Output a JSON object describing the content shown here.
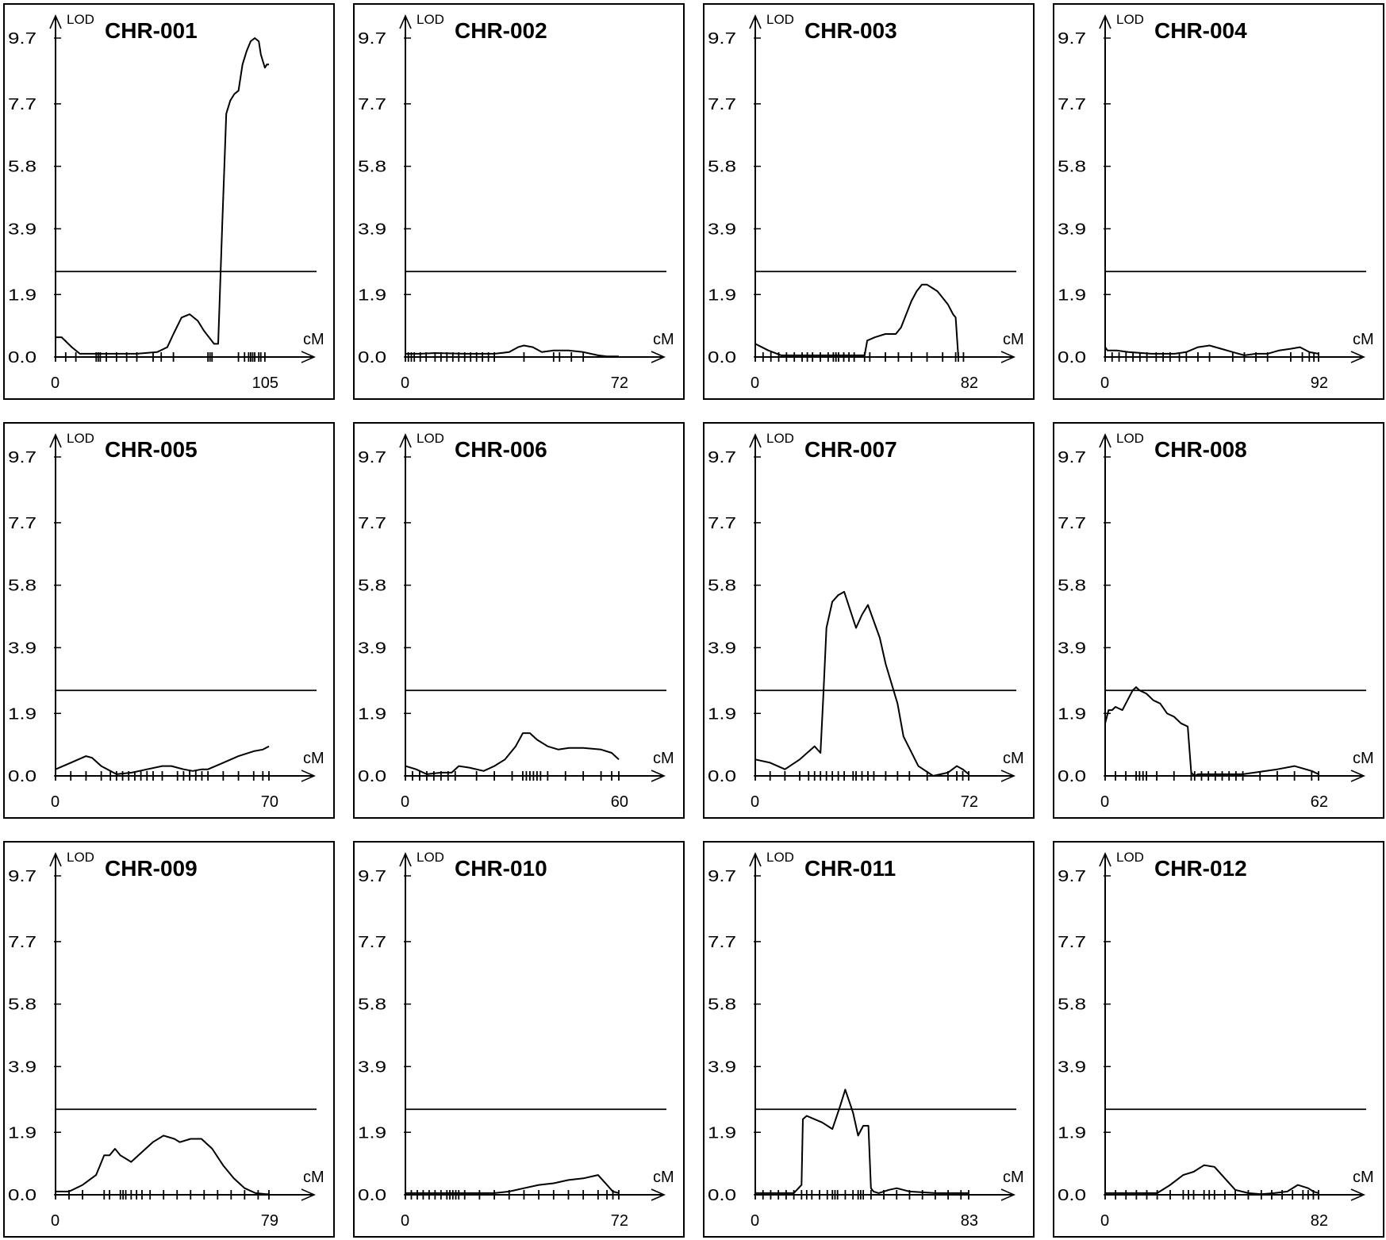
{
  "axis": {
    "y_label": "LOD",
    "x_unit": "cM",
    "y_ticks": [
      "0.0",
      "1.9",
      "3.9",
      "5.8",
      "7.7",
      "9.7"
    ]
  },
  "chart_data": [
    {
      "type": "line",
      "title": "CHR-001",
      "xlim": [
        0,
        105
      ],
      "x_tick_labels": [
        "0",
        "105"
      ],
      "ylim": [
        0,
        9.7
      ],
      "threshold": 2.6,
      "x": [
        0,
        3,
        8,
        12,
        20,
        30,
        40,
        50,
        55,
        58,
        62,
        66,
        70,
        73,
        78,
        80,
        82,
        84,
        86,
        88,
        90,
        92,
        94,
        96,
        98,
        100,
        101,
        102,
        103,
        104,
        105
      ],
      "y": [
        0.6,
        0.6,
        0.3,
        0.1,
        0.1,
        0.1,
        0.1,
        0.15,
        0.3,
        0.7,
        1.2,
        1.3,
        1.1,
        0.8,
        0.4,
        0.4,
        4.0,
        7.4,
        7.8,
        8.0,
        8.1,
        8.9,
        9.3,
        9.6,
        9.7,
        9.6,
        9.2,
        9.0,
        8.8,
        8.9,
        8.9
      ],
      "markers": [
        0,
        5,
        10,
        20,
        21,
        22,
        25,
        30,
        35,
        40,
        48,
        52,
        58,
        75,
        76,
        77,
        90,
        93,
        95,
        96,
        97,
        98,
        100,
        101,
        103
      ]
    },
    {
      "type": "line",
      "title": "CHR-002",
      "xlim": [
        0,
        72
      ],
      "x_tick_labels": [
        "0",
        "72"
      ],
      "ylim": [
        0,
        9.7
      ],
      "threshold": 2.6,
      "x": [
        0,
        5,
        10,
        20,
        30,
        35,
        38,
        40,
        43,
        46,
        50,
        55,
        60,
        65,
        68,
        72
      ],
      "y": [
        0.1,
        0.1,
        0.12,
        0.1,
        0.1,
        0.15,
        0.3,
        0.35,
        0.3,
        0.15,
        0.2,
        0.2,
        0.15,
        0.05,
        0.02,
        0.02
      ],
      "markers": [
        0,
        1,
        2,
        3,
        5,
        7,
        10,
        12,
        14,
        16,
        18,
        20,
        22,
        24,
        26,
        28,
        30,
        40,
        50,
        52,
        56,
        60
      ]
    },
    {
      "type": "line",
      "title": "CHR-003",
      "xlim": [
        0,
        82
      ],
      "x_tick_labels": [
        "0",
        "82"
      ],
      "ylim": [
        0,
        9.7
      ],
      "threshold": 2.6,
      "x": [
        0,
        5,
        10,
        20,
        30,
        38,
        42,
        43,
        46,
        50,
        54,
        56,
        60,
        62,
        64,
        66,
        68,
        70,
        72,
        74,
        76,
        77,
        78,
        79,
        80,
        82
      ],
      "y": [
        0.4,
        0.2,
        0.05,
        0.05,
        0.05,
        0.05,
        0.05,
        0.5,
        0.6,
        0.7,
        0.7,
        0.9,
        1.7,
        2.0,
        2.2,
        2.2,
        2.1,
        2.0,
        1.8,
        1.6,
        1.3,
        1.2,
        0,
        0,
        0,
        0
      ],
      "markers": [
        0,
        3,
        6,
        9,
        12,
        15,
        18,
        20,
        22,
        25,
        28,
        30,
        31,
        32,
        34,
        36,
        38,
        42,
        44,
        50,
        55,
        60,
        66,
        72,
        77,
        78,
        80
      ]
    },
    {
      "type": "line",
      "title": "CHR-004",
      "xlim": [
        0,
        92
      ],
      "x_tick_labels": [
        "0",
        "92"
      ],
      "ylim": [
        0,
        9.7
      ],
      "threshold": 2.6,
      "x": [
        0,
        1,
        5,
        10,
        20,
        30,
        35,
        40,
        45,
        50,
        55,
        60,
        65,
        70,
        75,
        80,
        84,
        88,
        92
      ],
      "y": [
        0.3,
        0.2,
        0.2,
        0.15,
        0.1,
        0.1,
        0.15,
        0.3,
        0.35,
        0.25,
        0.15,
        0.05,
        0.1,
        0.1,
        0.2,
        0.25,
        0.3,
        0.15,
        0.1
      ],
      "markers": [
        0,
        3,
        6,
        9,
        12,
        15,
        18,
        22,
        25,
        28,
        32,
        35,
        40,
        45,
        55,
        60,
        65,
        70,
        80,
        85,
        88,
        90,
        92
      ]
    },
    {
      "type": "line",
      "title": "CHR-005",
      "xlim": [
        0,
        70
      ],
      "x_tick_labels": [
        "0",
        "70"
      ],
      "ylim": [
        0,
        9.7
      ],
      "threshold": 2.6,
      "x": [
        0,
        5,
        10,
        12,
        15,
        20,
        25,
        30,
        35,
        38,
        42,
        45,
        48,
        50,
        55,
        60,
        65,
        68,
        70
      ],
      "y": [
        0.2,
        0.4,
        0.6,
        0.55,
        0.3,
        0.05,
        0.1,
        0.2,
        0.3,
        0.3,
        0.2,
        0.15,
        0.2,
        0.2,
        0.4,
        0.6,
        0.75,
        0.8,
        0.9
      ],
      "markers": [
        0,
        5,
        10,
        15,
        18,
        20,
        22,
        24,
        26,
        28,
        30,
        32,
        35,
        40,
        42,
        44,
        46,
        48,
        50,
        55,
        60,
        65,
        68,
        70
      ]
    },
    {
      "type": "line",
      "title": "CHR-006",
      "xlim": [
        0,
        60
      ],
      "x_tick_labels": [
        "0",
        "60"
      ],
      "ylim": [
        0,
        9.7
      ],
      "threshold": 2.6,
      "x": [
        0,
        3,
        6,
        10,
        13,
        15,
        18,
        22,
        25,
        28,
        31,
        33,
        35,
        37,
        40,
        43,
        46,
        50,
        55,
        58,
        60
      ],
      "y": [
        0.3,
        0.2,
        0.05,
        0.1,
        0.1,
        0.3,
        0.25,
        0.15,
        0.3,
        0.5,
        0.9,
        1.3,
        1.3,
        1.1,
        0.9,
        0.8,
        0.85,
        0.85,
        0.8,
        0.7,
        0.5
      ],
      "markers": [
        0,
        2,
        4,
        6,
        8,
        10,
        12,
        14,
        20,
        25,
        30,
        33,
        34,
        35,
        36,
        37,
        38,
        40,
        45,
        50,
        55,
        58,
        60
      ]
    },
    {
      "type": "line",
      "title": "CHR-007",
      "xlim": [
        0,
        72
      ],
      "x_tick_labels": [
        "0",
        "72"
      ],
      "ylim": [
        0,
        9.7
      ],
      "threshold": 2.6,
      "x": [
        0,
        5,
        10,
        15,
        20,
        22,
        23,
        24,
        26,
        28,
        30,
        34,
        36,
        38,
        42,
        44,
        48,
        50,
        55,
        60,
        65,
        68,
        70,
        72
      ],
      "y": [
        0.5,
        0.4,
        0.2,
        0.5,
        0.9,
        0.7,
        2.5,
        4.5,
        5.3,
        5.5,
        5.6,
        4.5,
        4.9,
        5.2,
        4.2,
        3.4,
        2.2,
        1.2,
        0.3,
        0,
        0.1,
        0.3,
        0.2,
        0.05
      ],
      "markers": [
        0,
        5,
        10,
        15,
        18,
        20,
        22,
        24,
        26,
        28,
        30,
        33,
        34,
        36,
        38,
        40,
        44,
        48,
        52,
        58,
        65,
        68,
        70,
        72
      ]
    },
    {
      "type": "line",
      "title": "CHR-008",
      "xlim": [
        0,
        62
      ],
      "x_tick_labels": [
        "0",
        "62"
      ],
      "ylim": [
        0,
        9.7
      ],
      "threshold": 2.6,
      "x": [
        0,
        1,
        2,
        3,
        5,
        6,
        8,
        9,
        10,
        12,
        14,
        16,
        18,
        20,
        22,
        24,
        25,
        26,
        27,
        30,
        40,
        50,
        55,
        60,
        62
      ],
      "y": [
        1.6,
        2.0,
        2.0,
        2.1,
        2.0,
        2.2,
        2.6,
        2.7,
        2.6,
        2.5,
        2.3,
        2.2,
        1.9,
        1.8,
        1.6,
        1.5,
        0.1,
        0,
        0.05,
        0.05,
        0.05,
        0.2,
        0.3,
        0.15,
        0.05
      ],
      "markers": [
        0,
        3,
        6,
        9,
        10,
        11,
        12,
        15,
        20,
        25,
        26,
        28,
        30,
        32,
        34,
        36,
        38,
        40,
        45,
        50,
        55,
        60,
        62
      ]
    },
    {
      "type": "line",
      "title": "CHR-009",
      "xlim": [
        0,
        79
      ],
      "x_tick_labels": [
        "0",
        "79"
      ],
      "ylim": [
        0,
        9.7
      ],
      "threshold": 2.6,
      "x": [
        0,
        5,
        10,
        15,
        18,
        20,
        22,
        24,
        26,
        28,
        32,
        36,
        40,
        44,
        46,
        50,
        54,
        58,
        62,
        66,
        70,
        74,
        78,
        79
      ],
      "y": [
        0.1,
        0.1,
        0.3,
        0.6,
        1.2,
        1.2,
        1.4,
        1.2,
        1.1,
        1.0,
        1.3,
        1.6,
        1.8,
        1.7,
        1.6,
        1.7,
        1.7,
        1.4,
        0.9,
        0.5,
        0.2,
        0.05,
        0.02,
        0.02
      ],
      "markers": [
        0,
        5,
        10,
        18,
        20,
        24,
        25,
        26,
        28,
        30,
        32,
        35,
        40,
        45,
        50,
        55,
        60,
        65,
        70,
        75,
        79
      ]
    },
    {
      "type": "line",
      "title": "CHR-010",
      "xlim": [
        0,
        72
      ],
      "x_tick_labels": [
        "0",
        "72"
      ],
      "ylim": [
        0,
        9.7
      ],
      "threshold": 2.6,
      "x": [
        0,
        10,
        20,
        30,
        35,
        40,
        45,
        50,
        55,
        60,
        65,
        68,
        70,
        72
      ],
      "y": [
        0.05,
        0.05,
        0.05,
        0.05,
        0.1,
        0.2,
        0.3,
        0.35,
        0.45,
        0.5,
        0.6,
        0.3,
        0.1,
        0.05
      ],
      "markers": [
        0,
        2,
        4,
        6,
        8,
        10,
        12,
        14,
        15,
        16,
        17,
        18,
        20,
        25,
        30,
        35,
        40,
        45,
        50,
        55,
        60,
        65,
        68,
        70,
        72
      ]
    },
    {
      "type": "line",
      "title": "CHR-011",
      "xlim": [
        0,
        83
      ],
      "x_tick_labels": [
        "0",
        "83"
      ],
      "ylim": [
        0,
        9.7
      ],
      "threshold": 2.6,
      "x": [
        0,
        10,
        15,
        18,
        18.5,
        20,
        23,
        26,
        30,
        33,
        35,
        38,
        40,
        42,
        44,
        45,
        46,
        48,
        52,
        55,
        60,
        70,
        83
      ],
      "y": [
        0.05,
        0.05,
        0.05,
        0.3,
        2.3,
        2.4,
        2.3,
        2.2,
        2.0,
        2.7,
        3.2,
        2.5,
        1.8,
        2.1,
        2.1,
        0.2,
        0.1,
        0.05,
        0.15,
        0.2,
        0.1,
        0.05,
        0.05
      ],
      "markers": [
        0,
        3,
        6,
        9,
        12,
        15,
        18,
        20,
        22,
        25,
        28,
        30,
        31,
        32,
        35,
        38,
        40,
        41,
        42,
        45,
        50,
        55,
        60,
        65,
        70,
        75,
        80,
        83
      ]
    },
    {
      "type": "line",
      "title": "CHR-012",
      "xlim": [
        0,
        82
      ],
      "x_tick_labels": [
        "0",
        "82"
      ],
      "ylim": [
        0,
        9.7
      ],
      "threshold": 2.6,
      "x": [
        0,
        10,
        20,
        25,
        30,
        34,
        38,
        42,
        46,
        50,
        55,
        60,
        65,
        70,
        74,
        78,
        80,
        82
      ],
      "y": [
        0.05,
        0.05,
        0.05,
        0.3,
        0.6,
        0.7,
        0.9,
        0.85,
        0.5,
        0.15,
        0.05,
        0.02,
        0.05,
        0.1,
        0.3,
        0.2,
        0.1,
        0.05
      ],
      "markers": [
        0,
        4,
        8,
        12,
        16,
        20,
        25,
        30,
        32,
        34,
        38,
        40,
        42,
        46,
        50,
        55,
        60,
        64,
        68,
        72,
        76,
        78,
        80,
        82
      ]
    }
  ]
}
